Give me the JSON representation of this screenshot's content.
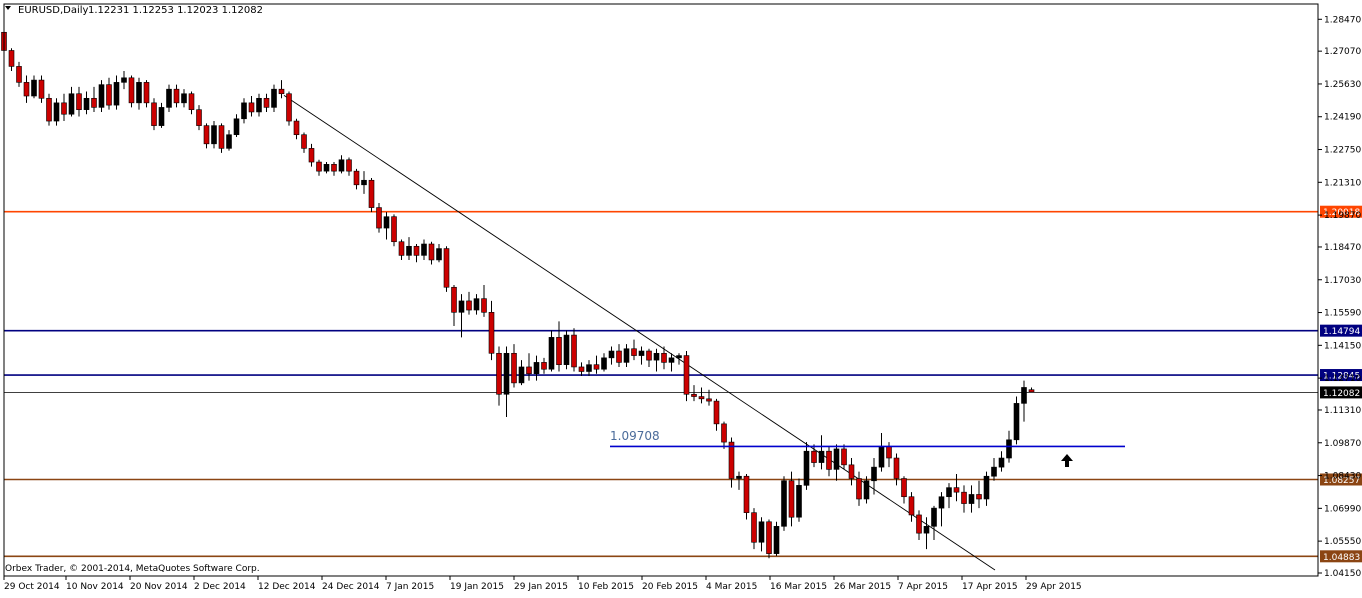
{
  "header": {
    "symbol": "EURUSD,Daily",
    "ohlc": "1.12231 1.12253 1.12023 1.12082"
  },
  "footer": {
    "copyright": "Orbex Trader, © 2001-2014, MetaQuotes Software Corp."
  },
  "annotation": {
    "label": "1.09708"
  },
  "colors": {
    "bull": "#000000",
    "bear": "#cc0000",
    "orange_line": "#ff4500",
    "navy_line": "#000080",
    "brown_line": "#8b4513",
    "blue_line": "#0000cd"
  },
  "chart_data": {
    "type": "candlestick",
    "ylim": [
      1.0415,
      1.2879
    ],
    "y_ticks": [
      "1.28470",
      "1.27070",
      "1.25630",
      "1.24190",
      "1.22750",
      "1.21310",
      "1.19870",
      "1.18470",
      "1.17030",
      "1.15590",
      "1.14150",
      "1.12710",
      "1.11310",
      "1.09870",
      "1.08430",
      "1.06990",
      "1.05550",
      "1.04150"
    ],
    "x_ticks": [
      "29 Oct 2014",
      "10 Nov 2014",
      "20 Nov 2014",
      "2 Dec 2014",
      "12 Dec 2014",
      "24 Dec 2014",
      "7 Jan 2015",
      "19 Jan 2015",
      "29 Jan 2015",
      "10 Feb 2015",
      "20 Feb 2015",
      "4 Mar 2015",
      "16 Mar 2015",
      "26 Mar 2015",
      "7 Apr 2015",
      "17 Apr 2015",
      "29 Apr 2015"
    ],
    "levels": [
      {
        "value": 1.20018,
        "label": "1.20018",
        "color": "orange"
      },
      {
        "value": 1.14794,
        "label": "1.14794",
        "color": "navy"
      },
      {
        "value": 1.12845,
        "label": "1.12845",
        "color": "navy"
      },
      {
        "value": 1.12082,
        "label": "1.12082",
        "color": "black"
      },
      {
        "value": 1.08257,
        "label": "1.08257",
        "color": "brown"
      },
      {
        "value": 1.04883,
        "label": "1.04883",
        "color": "brown"
      }
    ],
    "support_line": {
      "value": 1.09708,
      "label": "1.09708"
    },
    "trendline": {
      "from_value": 1.2513,
      "to_value": 1.0428
    },
    "candles": [
      [
        1.279,
        1.2795,
        1.269,
        1.271
      ],
      [
        1.271,
        1.272,
        1.262,
        1.264
      ],
      [
        1.264,
        1.266,
        1.255,
        1.257
      ],
      [
        1.257,
        1.26,
        1.248,
        1.251
      ],
      [
        1.251,
        1.26,
        1.25,
        1.258
      ],
      [
        1.258,
        1.26,
        1.248,
        1.25
      ],
      [
        1.25,
        1.252,
        1.238,
        1.24
      ],
      [
        1.24,
        1.25,
        1.238,
        1.248
      ],
      [
        1.248,
        1.252,
        1.24,
        1.243
      ],
      [
        1.243,
        1.255,
        1.242,
        1.252
      ],
      [
        1.252,
        1.255,
        1.242,
        1.245
      ],
      [
        1.245,
        1.253,
        1.243,
        1.25
      ],
      [
        1.25,
        1.255,
        1.244,
        1.246
      ],
      [
        1.246,
        1.258,
        1.244,
        1.256
      ],
      [
        1.256,
        1.259,
        1.245,
        1.247
      ],
      [
        1.247,
        1.26,
        1.245,
        1.257
      ],
      [
        1.257,
        1.262,
        1.254,
        1.259
      ],
      [
        1.259,
        1.26,
        1.246,
        1.248
      ],
      [
        1.248,
        1.259,
        1.245,
        1.257
      ],
      [
        1.257,
        1.258,
        1.246,
        1.248
      ],
      [
        1.248,
        1.25,
        1.236,
        1.238
      ],
      [
        1.238,
        1.248,
        1.237,
        1.246
      ],
      [
        1.246,
        1.256,
        1.244,
        1.254
      ],
      [
        1.254,
        1.256,
        1.246,
        1.248
      ],
      [
        1.248,
        1.254,
        1.246,
        1.252
      ],
      [
        1.252,
        1.253,
        1.243,
        1.245
      ],
      [
        1.245,
        1.247,
        1.236,
        1.238
      ],
      [
        1.238,
        1.239,
        1.228,
        1.23
      ],
      [
        1.23,
        1.24,
        1.228,
        1.238
      ],
      [
        1.238,
        1.239,
        1.226,
        1.228
      ],
      [
        1.228,
        1.236,
        1.227,
        1.234
      ],
      [
        1.234,
        1.243,
        1.233,
        1.241
      ],
      [
        1.241,
        1.25,
        1.239,
        1.248
      ],
      [
        1.248,
        1.251,
        1.242,
        1.244
      ],
      [
        1.244,
        1.252,
        1.242,
        1.25
      ],
      [
        1.25,
        1.252,
        1.244,
        1.246
      ],
      [
        1.246,
        1.256,
        1.244,
        1.254
      ],
      [
        1.254,
        1.258,
        1.25,
        1.252
      ],
      [
        1.252,
        1.253,
        1.238,
        1.24
      ],
      [
        1.24,
        1.241,
        1.232,
        1.234
      ],
      [
        1.234,
        1.235,
        1.226,
        1.228
      ],
      [
        1.228,
        1.23,
        1.22,
        1.222
      ],
      [
        1.222,
        1.223,
        1.216,
        1.218
      ],
      [
        1.218,
        1.222,
        1.217,
        1.221
      ],
      [
        1.221,
        1.222,
        1.216,
        1.218
      ],
      [
        1.218,
        1.225,
        1.217,
        1.223
      ],
      [
        1.223,
        1.224,
        1.216,
        1.218
      ],
      [
        1.218,
        1.219,
        1.21,
        1.212
      ],
      [
        1.212,
        1.218,
        1.208,
        1.214
      ],
      [
        1.214,
        1.215,
        1.2,
        1.202
      ],
      [
        1.202,
        1.204,
        1.191,
        1.193
      ],
      [
        1.193,
        1.2,
        1.188,
        1.198
      ],
      [
        1.198,
        1.199,
        1.185,
        1.187
      ],
      [
        1.187,
        1.188,
        1.179,
        1.181
      ],
      [
        1.181,
        1.189,
        1.179,
        1.185
      ],
      [
        1.185,
        1.186,
        1.178,
        1.181
      ],
      [
        1.181,
        1.188,
        1.179,
        1.186
      ],
      [
        1.186,
        1.187,
        1.177,
        1.179
      ],
      [
        1.179,
        1.186,
        1.178,
        1.184
      ],
      [
        1.184,
        1.185,
        1.165,
        1.167
      ],
      [
        1.167,
        1.168,
        1.15,
        1.156
      ],
      [
        1.156,
        1.164,
        1.145,
        1.161
      ],
      [
        1.161,
        1.165,
        1.155,
        1.157
      ],
      [
        1.157,
        1.164,
        1.155,
        1.162
      ],
      [
        1.162,
        1.168,
        1.154,
        1.156
      ],
      [
        1.156,
        1.161,
        1.135,
        1.138
      ],
      [
        1.138,
        1.141,
        1.115,
        1.12
      ],
      [
        1.12,
        1.141,
        1.11,
        1.138
      ],
      [
        1.138,
        1.142,
        1.123,
        1.125
      ],
      [
        1.125,
        1.135,
        1.124,
        1.132
      ],
      [
        1.132,
        1.138,
        1.126,
        1.129
      ],
      [
        1.129,
        1.137,
        1.126,
        1.134
      ],
      [
        1.134,
        1.136,
        1.129,
        1.131
      ],
      [
        1.131,
        1.148,
        1.13,
        1.145
      ],
      [
        1.145,
        1.152,
        1.13,
        1.133
      ],
      [
        1.133,
        1.148,
        1.131,
        1.146
      ],
      [
        1.146,
        1.149,
        1.13,
        1.132
      ],
      [
        1.132,
        1.134,
        1.128,
        1.13
      ],
      [
        1.13,
        1.135,
        1.128,
        1.133
      ],
      [
        1.133,
        1.137,
        1.129,
        1.131
      ],
      [
        1.131,
        1.138,
        1.13,
        1.136
      ],
      [
        1.136,
        1.141,
        1.133,
        1.139
      ],
      [
        1.139,
        1.142,
        1.132,
        1.134
      ],
      [
        1.134,
        1.142,
        1.132,
        1.14
      ],
      [
        1.14,
        1.144,
        1.135,
        1.137
      ],
      [
        1.137,
        1.141,
        1.133,
        1.139
      ],
      [
        1.139,
        1.14,
        1.132,
        1.135
      ],
      [
        1.135,
        1.14,
        1.13,
        1.138
      ],
      [
        1.138,
        1.141,
        1.131,
        1.134
      ],
      [
        1.134,
        1.138,
        1.13,
        1.136
      ],
      [
        1.136,
        1.138,
        1.133,
        1.137
      ],
      [
        1.137,
        1.139,
        1.117,
        1.12
      ],
      [
        1.12,
        1.124,
        1.117,
        1.119
      ],
      [
        1.119,
        1.123,
        1.116,
        1.118
      ],
      [
        1.118,
        1.122,
        1.115,
        1.117
      ],
      [
        1.117,
        1.118,
        1.104,
        1.107
      ],
      [
        1.107,
        1.108,
        1.096,
        1.099
      ],
      [
        1.099,
        1.101,
        1.079,
        1.083
      ],
      [
        1.083,
        1.086,
        1.078,
        1.084
      ],
      [
        1.084,
        1.085,
        1.065,
        1.068
      ],
      [
        1.068,
        1.07,
        1.052,
        1.055
      ],
      [
        1.055,
        1.066,
        1.051,
        1.064
      ],
      [
        1.064,
        1.065,
        1.048,
        1.05
      ],
      [
        1.05,
        1.064,
        1.049,
        1.062
      ],
      [
        1.062,
        1.084,
        1.06,
        1.082
      ],
      [
        1.082,
        1.086,
        1.062,
        1.066
      ],
      [
        1.066,
        1.083,
        1.064,
        1.08
      ],
      [
        1.08,
        1.099,
        1.078,
        1.095
      ],
      [
        1.095,
        1.098,
        1.088,
        1.09
      ],
      [
        1.09,
        1.102,
        1.087,
        1.095
      ],
      [
        1.095,
        1.097,
        1.084,
        1.087
      ],
      [
        1.087,
        1.098,
        1.082,
        1.096
      ],
      [
        1.096,
        1.098,
        1.087,
        1.089
      ],
      [
        1.089,
        1.092,
        1.08,
        1.083
      ],
      [
        1.083,
        1.086,
        1.071,
        1.074
      ],
      [
        1.074,
        1.084,
        1.072,
        1.082
      ],
      [
        1.082,
        1.092,
        1.076,
        1.088
      ],
      [
        1.088,
        1.103,
        1.086,
        1.097
      ],
      [
        1.097,
        1.099,
        1.088,
        1.092
      ],
      [
        1.092,
        1.094,
        1.08,
        1.083
      ],
      [
        1.083,
        1.084,
        1.072,
        1.075
      ],
      [
        1.075,
        1.077,
        1.064,
        1.067
      ],
      [
        1.067,
        1.069,
        1.056,
        1.059
      ],
      [
        1.059,
        1.066,
        1.052,
        1.062
      ],
      [
        1.062,
        1.071,
        1.056,
        1.07
      ],
      [
        1.07,
        1.077,
        1.062,
        1.075
      ],
      [
        1.075,
        1.081,
        1.07,
        1.079
      ],
      [
        1.079,
        1.085,
        1.073,
        1.077
      ],
      [
        1.077,
        1.08,
        1.068,
        1.072
      ],
      [
        1.072,
        1.08,
        1.068,
        1.076
      ],
      [
        1.076,
        1.082,
        1.07,
        1.074
      ],
      [
        1.074,
        1.086,
        1.071,
        1.084
      ],
      [
        1.084,
        1.092,
        1.082,
        1.088
      ],
      [
        1.088,
        1.095,
        1.086,
        1.092
      ],
      [
        1.092,
        1.104,
        1.09,
        1.1
      ],
      [
        1.1,
        1.119,
        1.098,
        1.116
      ],
      [
        1.116,
        1.126,
        1.108,
        1.123
      ],
      [
        1.122,
        1.123,
        1.121,
        1.121
      ]
    ]
  }
}
